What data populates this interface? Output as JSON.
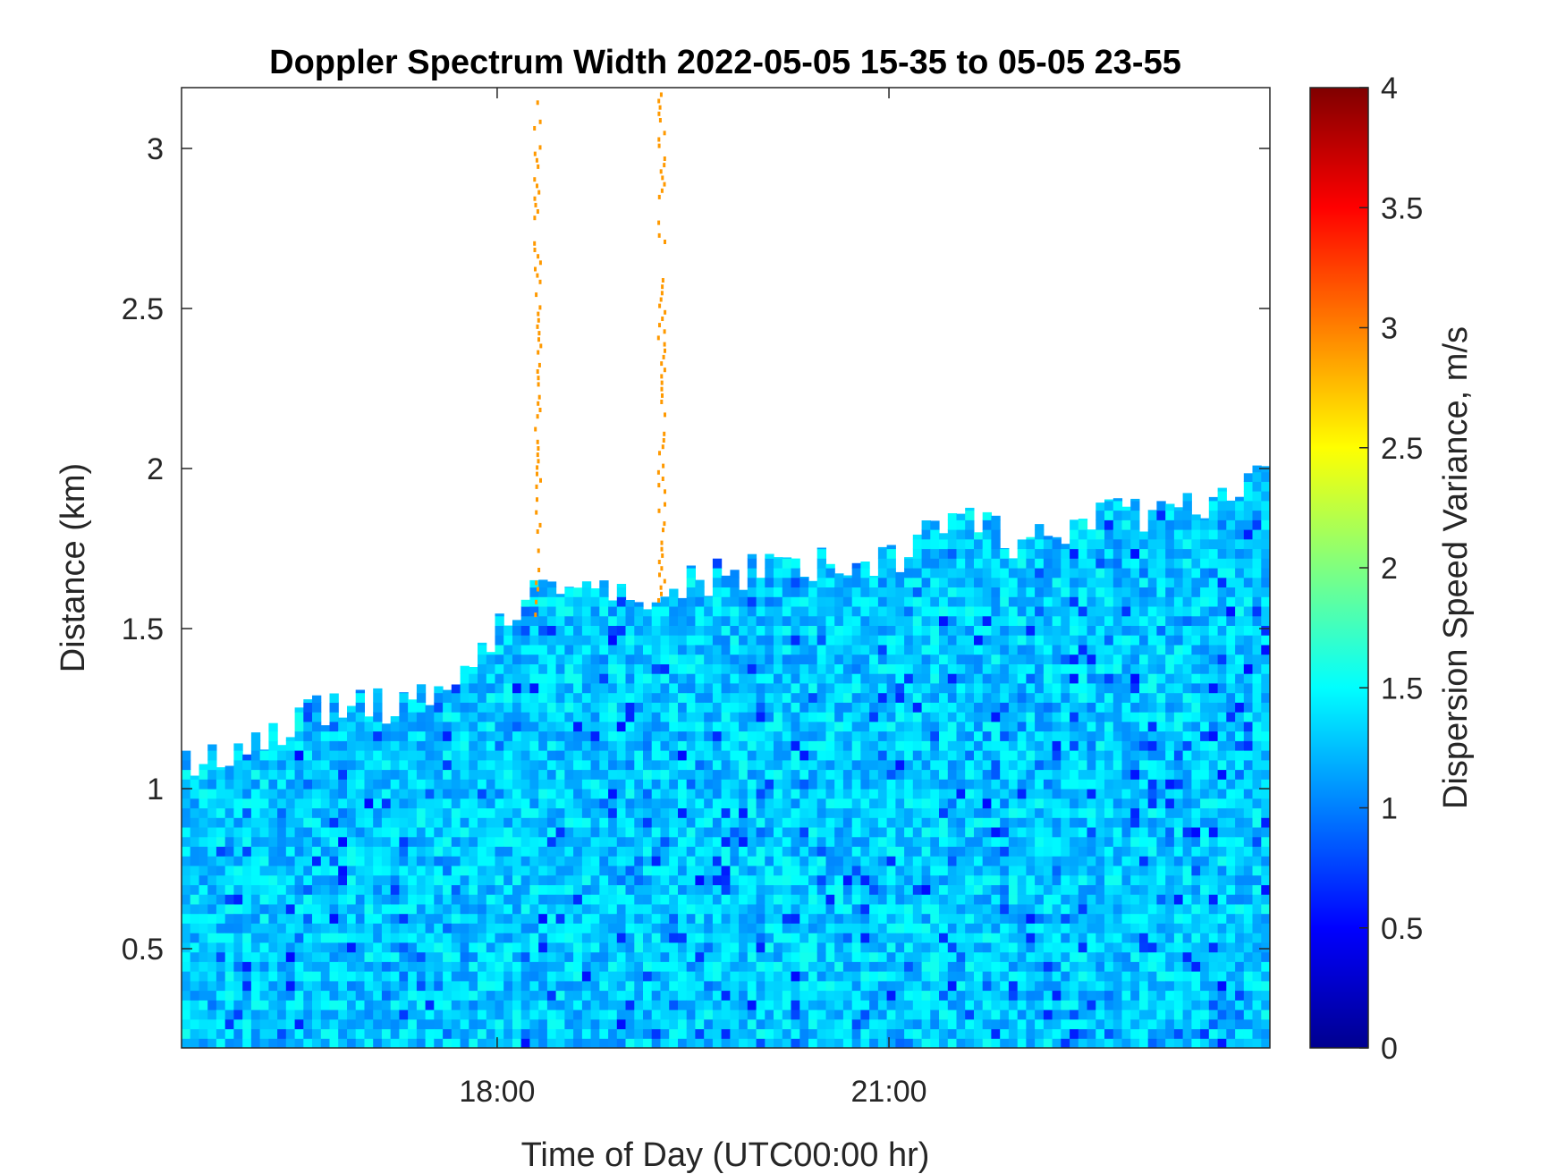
{
  "chart_data": {
    "type": "heatmap",
    "title": "Doppler Spectrum Width 2022-05-05 15-35 to 05-05 23-55",
    "xlabel": "Time of Day (UTC00:00 hr)",
    "ylabel": "Distance (km)",
    "colorbar_label": "Dispersion Speed Variance, m/s",
    "colormap": "jet",
    "xlim": [
      "15:35",
      "23:55"
    ],
    "x_ticks": [
      "18:00",
      "21:00"
    ],
    "ylim": [
      0.19,
      3.19
    ],
    "y_ticks": [
      0.5,
      1,
      1.5,
      2,
      2.5,
      3
    ],
    "clim": [
      0,
      4
    ],
    "colorbar_ticks": [
      0,
      0.5,
      1,
      1.5,
      2,
      2.5,
      3,
      3.5,
      4
    ],
    "background_color": "#ffffff",
    "no_data_color": "#ffffff",
    "signal_top_km": [
      {
        "time": "15:35",
        "km": 1.1
      },
      {
        "time": "16:00",
        "km": 1.1
      },
      {
        "time": "16:30",
        "km": 1.25
      },
      {
        "time": "17:00",
        "km": 1.25
      },
      {
        "time": "17:30",
        "km": 1.3
      },
      {
        "time": "17:50",
        "km": 1.45
      },
      {
        "time": "18:15",
        "km": 1.6
      },
      {
        "time": "19:00",
        "km": 1.6
      },
      {
        "time": "19:30",
        "km": 1.65
      },
      {
        "time": "20:00",
        "km": 1.68
      },
      {
        "time": "20:30",
        "km": 1.7
      },
      {
        "time": "21:00",
        "km": 1.72
      },
      {
        "time": "21:30",
        "km": 1.85
      },
      {
        "time": "22:00",
        "km": 1.75
      },
      {
        "time": "22:30",
        "km": 1.85
      },
      {
        "time": "23:00",
        "km": 1.85
      },
      {
        "time": "23:30",
        "km": 1.9
      },
      {
        "time": "23:55",
        "km": 2.0
      }
    ],
    "typical_value_ms": 1.3,
    "high_value_bands": [
      {
        "time": "18:18",
        "value_ms": 2.9
      },
      {
        "time": "19:15",
        "value_ms": 2.9
      }
    ]
  }
}
